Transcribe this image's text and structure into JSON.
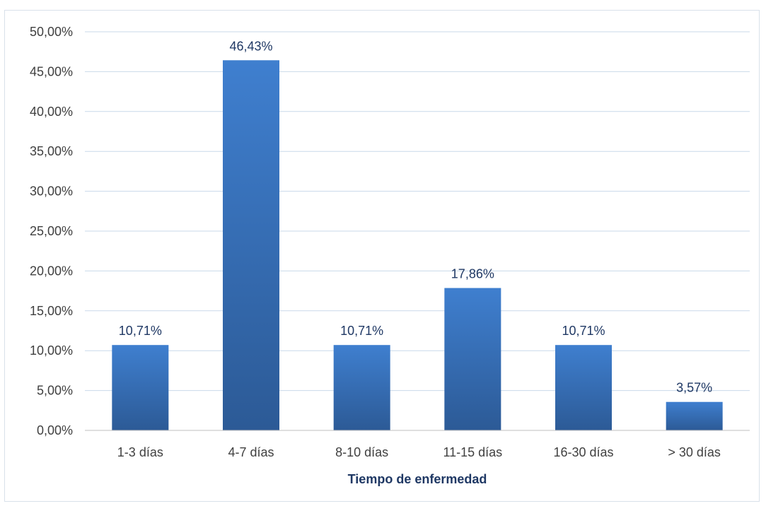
{
  "chart_data": {
    "type": "bar",
    "title": "",
    "xlabel": "Tiempo de enfermedad",
    "ylabel": "",
    "categories": [
      "1-3 días",
      "4-7 días",
      "8-10 días",
      "11-15 días",
      "16-30 días",
      "> 30 días"
    ],
    "values": [
      10.71,
      46.43,
      10.71,
      17.86,
      10.71,
      3.57
    ],
    "data_labels": [
      "10,71%",
      "46,43%",
      "10,71%",
      "17,86%",
      "10,71%",
      "3,57%"
    ],
    "ylim": [
      0,
      50
    ],
    "yticks": [
      0,
      5,
      10,
      15,
      20,
      25,
      30,
      35,
      40,
      45,
      50
    ],
    "ytick_labels": [
      "0,00%",
      "5,00%",
      "10,00%",
      "15,00%",
      "20,00%",
      "25,00%",
      "30,00%",
      "35,00%",
      "40,00%",
      "45,00%",
      "50,00%"
    ],
    "grid": true,
    "legend": "none",
    "bar_color_top": "#3f7fcf",
    "bar_color_bottom": "#2c5a96"
  }
}
